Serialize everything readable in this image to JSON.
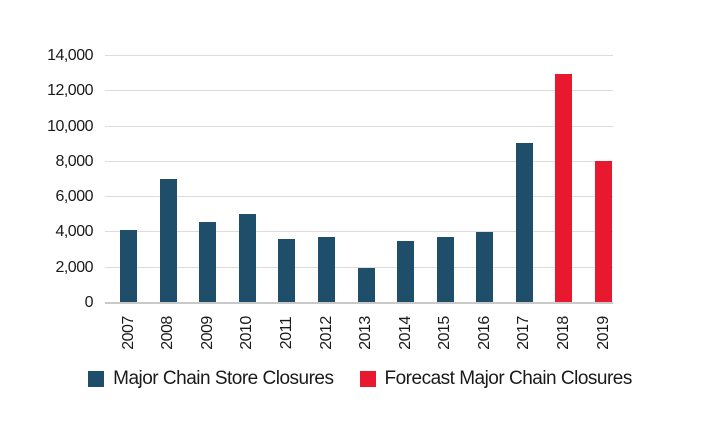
{
  "colors": {
    "actual_bar": "#1f4e6b",
    "forecast_bar": "#e8192f",
    "gridline": "#dcdcdc",
    "axis_line": "#c9c9c9",
    "text": "#1a1a1a",
    "background": "#ffffff"
  },
  "legend": {
    "items": [
      {
        "label": "Major Chain Store Closures",
        "color": "#1f4e6b",
        "series": "actual"
      },
      {
        "label": "Forecast Major Chain Closures",
        "color": "#e8192f",
        "series": "forecast"
      }
    ]
  },
  "chart_data": {
    "type": "bar",
    "title": "",
    "xlabel": "",
    "ylabel": "",
    "categories": [
      "2007",
      "2008",
      "2009",
      "2010",
      "2011",
      "2012",
      "2013",
      "2014",
      "2015",
      "2016",
      "2017",
      "2018",
      "2019"
    ],
    "series": [
      {
        "name": "Major Chain Store Closures",
        "color": "#1f4e6b",
        "values": [
          4100,
          6950,
          4550,
          5000,
          3550,
          3700,
          1950,
          3450,
          3700,
          3950,
          9000,
          null,
          null
        ]
      },
      {
        "name": "Forecast Major Chain Closures",
        "color": "#e8192f",
        "values": [
          null,
          null,
          null,
          null,
          null,
          null,
          null,
          null,
          null,
          null,
          null,
          12950,
          8000
        ]
      }
    ],
    "ylim": [
      0,
      14000
    ],
    "yticks": [
      {
        "value": 0,
        "label": "0"
      },
      {
        "value": 2000,
        "label": "2,000"
      },
      {
        "value": 4000,
        "label": "4,000"
      },
      {
        "value": 6000,
        "label": "6,000"
      },
      {
        "value": 8000,
        "label": "8,000"
      },
      {
        "value": 10000,
        "label": "10,000"
      },
      {
        "value": 12000,
        "label": "12,000"
      },
      {
        "value": 14000,
        "label": "14,000"
      }
    ],
    "grid": "horizontal",
    "legend_position": "bottom"
  }
}
